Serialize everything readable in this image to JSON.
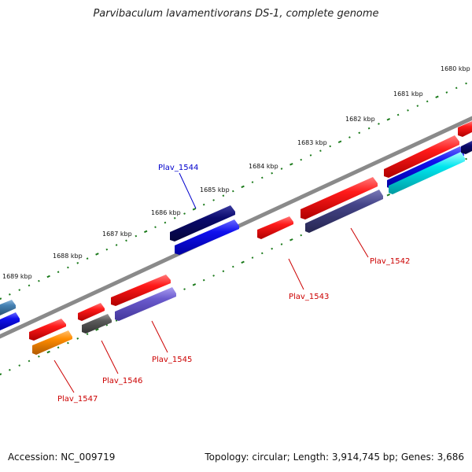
{
  "title": "Parvibaculum lavamentivorans DS-1, complete genome",
  "footer": {
    "accession": "Accession: NC_009719",
    "summary": "Topology: circular; Length: 3,914,745 bp; Genes: 3,686"
  },
  "ruler_labels": [
    "1680 kbp",
    "1681 kbp",
    "1682 kbp",
    "1683 kbp",
    "1684 kbp",
    "1685 kbp",
    "1686 kbp",
    "1687 kbp",
    "1688 kbp",
    "1689 kbp"
  ],
  "gene_labels": [
    {
      "text": "Plav_1544",
      "color": "#0000cc"
    },
    {
      "text": "Plav_1542",
      "color": "#cc0000"
    },
    {
      "text": "Plav_1543",
      "color": "#cc0000"
    },
    {
      "text": "Plav_1545",
      "color": "#cc0000"
    },
    {
      "text": "Plav_1546",
      "color": "#cc0000"
    },
    {
      "text": "Plav_1547",
      "color": "#cc0000"
    }
  ],
  "colors": {
    "backbone": "#8a8a8a",
    "ticks": "#1a7a1a",
    "forward_gene": "#ee0000",
    "cog_dark_blue": "#0a0a6e",
    "cog_blue": "#1010ee",
    "cog_slate": "#444488",
    "cog_purple": "#6a5acd",
    "cog_cyan": "#00e5ee",
    "cog_orange": "#ff8c00",
    "cog_gray": "#5a5a5a",
    "cog_steel": "#4682b4"
  }
}
